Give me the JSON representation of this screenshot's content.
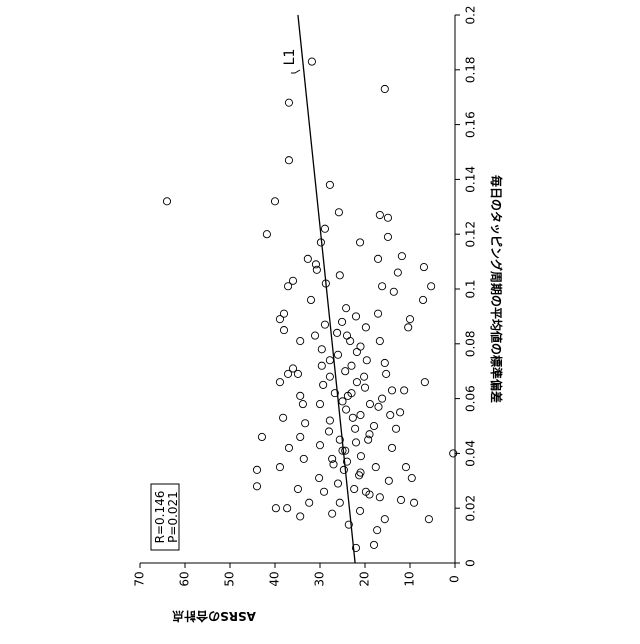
{
  "chart_data": {
    "type": "scatter",
    "x_label": "毎日のタッピング周期の平均値の標準偏差",
    "y_label": "ASRSの合計点",
    "xlim": [
      0,
      0.2
    ],
    "xticks": [
      0,
      0.02,
      0.04,
      0.06,
      0.08,
      0.1,
      0.12,
      0.14,
      0.16,
      0.18,
      0.2
    ],
    "ylim": [
      0,
      70
    ],
    "yticks": [
      0,
      10,
      20,
      30,
      40,
      50,
      60,
      70
    ],
    "series": [
      {
        "color": "#000000",
        "x": [
          0.183,
          0.173,
          0.168,
          0.147,
          0.138,
          0.132,
          0.132,
          0.128,
          0.127,
          0.126,
          0.12,
          0.122,
          0.117,
          0.119,
          0.117,
          0.112,
          0.111,
          0.111,
          0.109,
          0.108,
          0.106,
          0.105,
          0.107,
          0.103,
          0.101,
          0.101,
          0.101,
          0.102,
          0.099,
          0.096,
          0.096,
          0.093,
          0.091,
          0.091,
          0.089,
          0.09,
          0.087,
          0.089,
          0.086,
          0.086,
          0.085,
          0.088,
          0.084,
          0.083,
          0.081,
          0.081,
          0.081,
          0.078,
          0.077,
          0.074,
          0.074,
          0.073,
          0.071,
          0.072,
          0.07,
          0.069,
          0.069,
          0.068,
          0.068,
          0.069,
          0.066,
          0.066,
          0.065,
          0.066,
          0.063,
          0.063,
          0.062,
          0.061,
          0.061,
          0.06,
          0.058,
          0.058,
          0.058,
          0.056,
          0.055,
          0.054,
          0.053,
          0.052,
          0.05,
          0.053,
          0.051,
          0.049,
          0.049,
          0.046,
          0.046,
          0.045,
          0.045,
          0.043,
          0.042,
          0.042,
          0.041,
          0.039,
          0.04,
          0.038,
          0.038,
          0.035,
          0.034,
          0.035,
          0.035,
          0.034,
          0.032,
          0.031,
          0.031,
          0.03,
          0.028,
          0.027,
          0.027,
          0.026,
          0.026,
          0.024,
          0.023,
          0.022,
          0.022,
          0.022,
          0.02,
          0.02,
          0.019,
          0.018,
          0.017,
          0.016,
          0.016,
          0.014,
          0.012,
          0.0066,
          0.0055,
          0.076,
          0.072,
          0.064,
          0.059,
          0.054,
          0.048,
          0.044,
          0.037,
          0.033,
          0.029,
          0.025,
          0.062,
          0.057,
          0.047,
          0.041,
          0.036,
          0.079,
          0.083
        ],
        "values": [
          31.8,
          15.6,
          36.9,
          36.9,
          27.8,
          64,
          40,
          25.8,
          16.7,
          14.9,
          41.8,
          28.9,
          21.1,
          14.9,
          29.8,
          11.8,
          17.1,
          32.7,
          30.9,
          6.9,
          12.7,
          25.6,
          30.7,
          36,
          37.1,
          5.3,
          16.2,
          28.7,
          13.6,
          7.1,
          32,
          24.2,
          17.1,
          38,
          38.9,
          22,
          28.9,
          10,
          10.4,
          19.8,
          38,
          25.1,
          26.2,
          31.1,
          34.4,
          23.3,
          16.7,
          29.6,
          21.8,
          27.8,
          19.6,
          15.6,
          36,
          29.6,
          24.4,
          15.3,
          34.9,
          27.8,
          20.2,
          37.1,
          6.7,
          38.9,
          29.3,
          21.8,
          14,
          11.3,
          26.7,
          34.4,
          23.8,
          16.2,
          18.9,
          33.8,
          30,
          24.2,
          12.2,
          14.4,
          22.7,
          27.8,
          18,
          38.2,
          33.3,
          22.2,
          13.1,
          34.4,
          42.9,
          25.6,
          19.3,
          30,
          36.9,
          14,
          24.4,
          20.9,
          0.4,
          33.6,
          27.3,
          10.9,
          44,
          38.9,
          17.6,
          24.7,
          21.3,
          9.6,
          30.2,
          14.7,
          44,
          34.9,
          22.4,
          29.1,
          19.8,
          16.7,
          12,
          9.1,
          25.6,
          32.4,
          37.3,
          39.8,
          21.1,
          27.3,
          34.4,
          15.6,
          5.8,
          23.6,
          17.3,
          18,
          22,
          26,
          23,
          20,
          25,
          21,
          28,
          22,
          24,
          21,
          26,
          19,
          23,
          17,
          19,
          25,
          27,
          21,
          24
        ]
      }
    ],
    "lines": [
      {
        "name": "L1",
        "color": "#000000",
        "x": [
          0,
          0.2
        ],
        "values": [
          22.2,
          34.9
        ]
      }
    ],
    "annotations": [
      "R=0.146",
      "P=0.021"
    ]
  }
}
